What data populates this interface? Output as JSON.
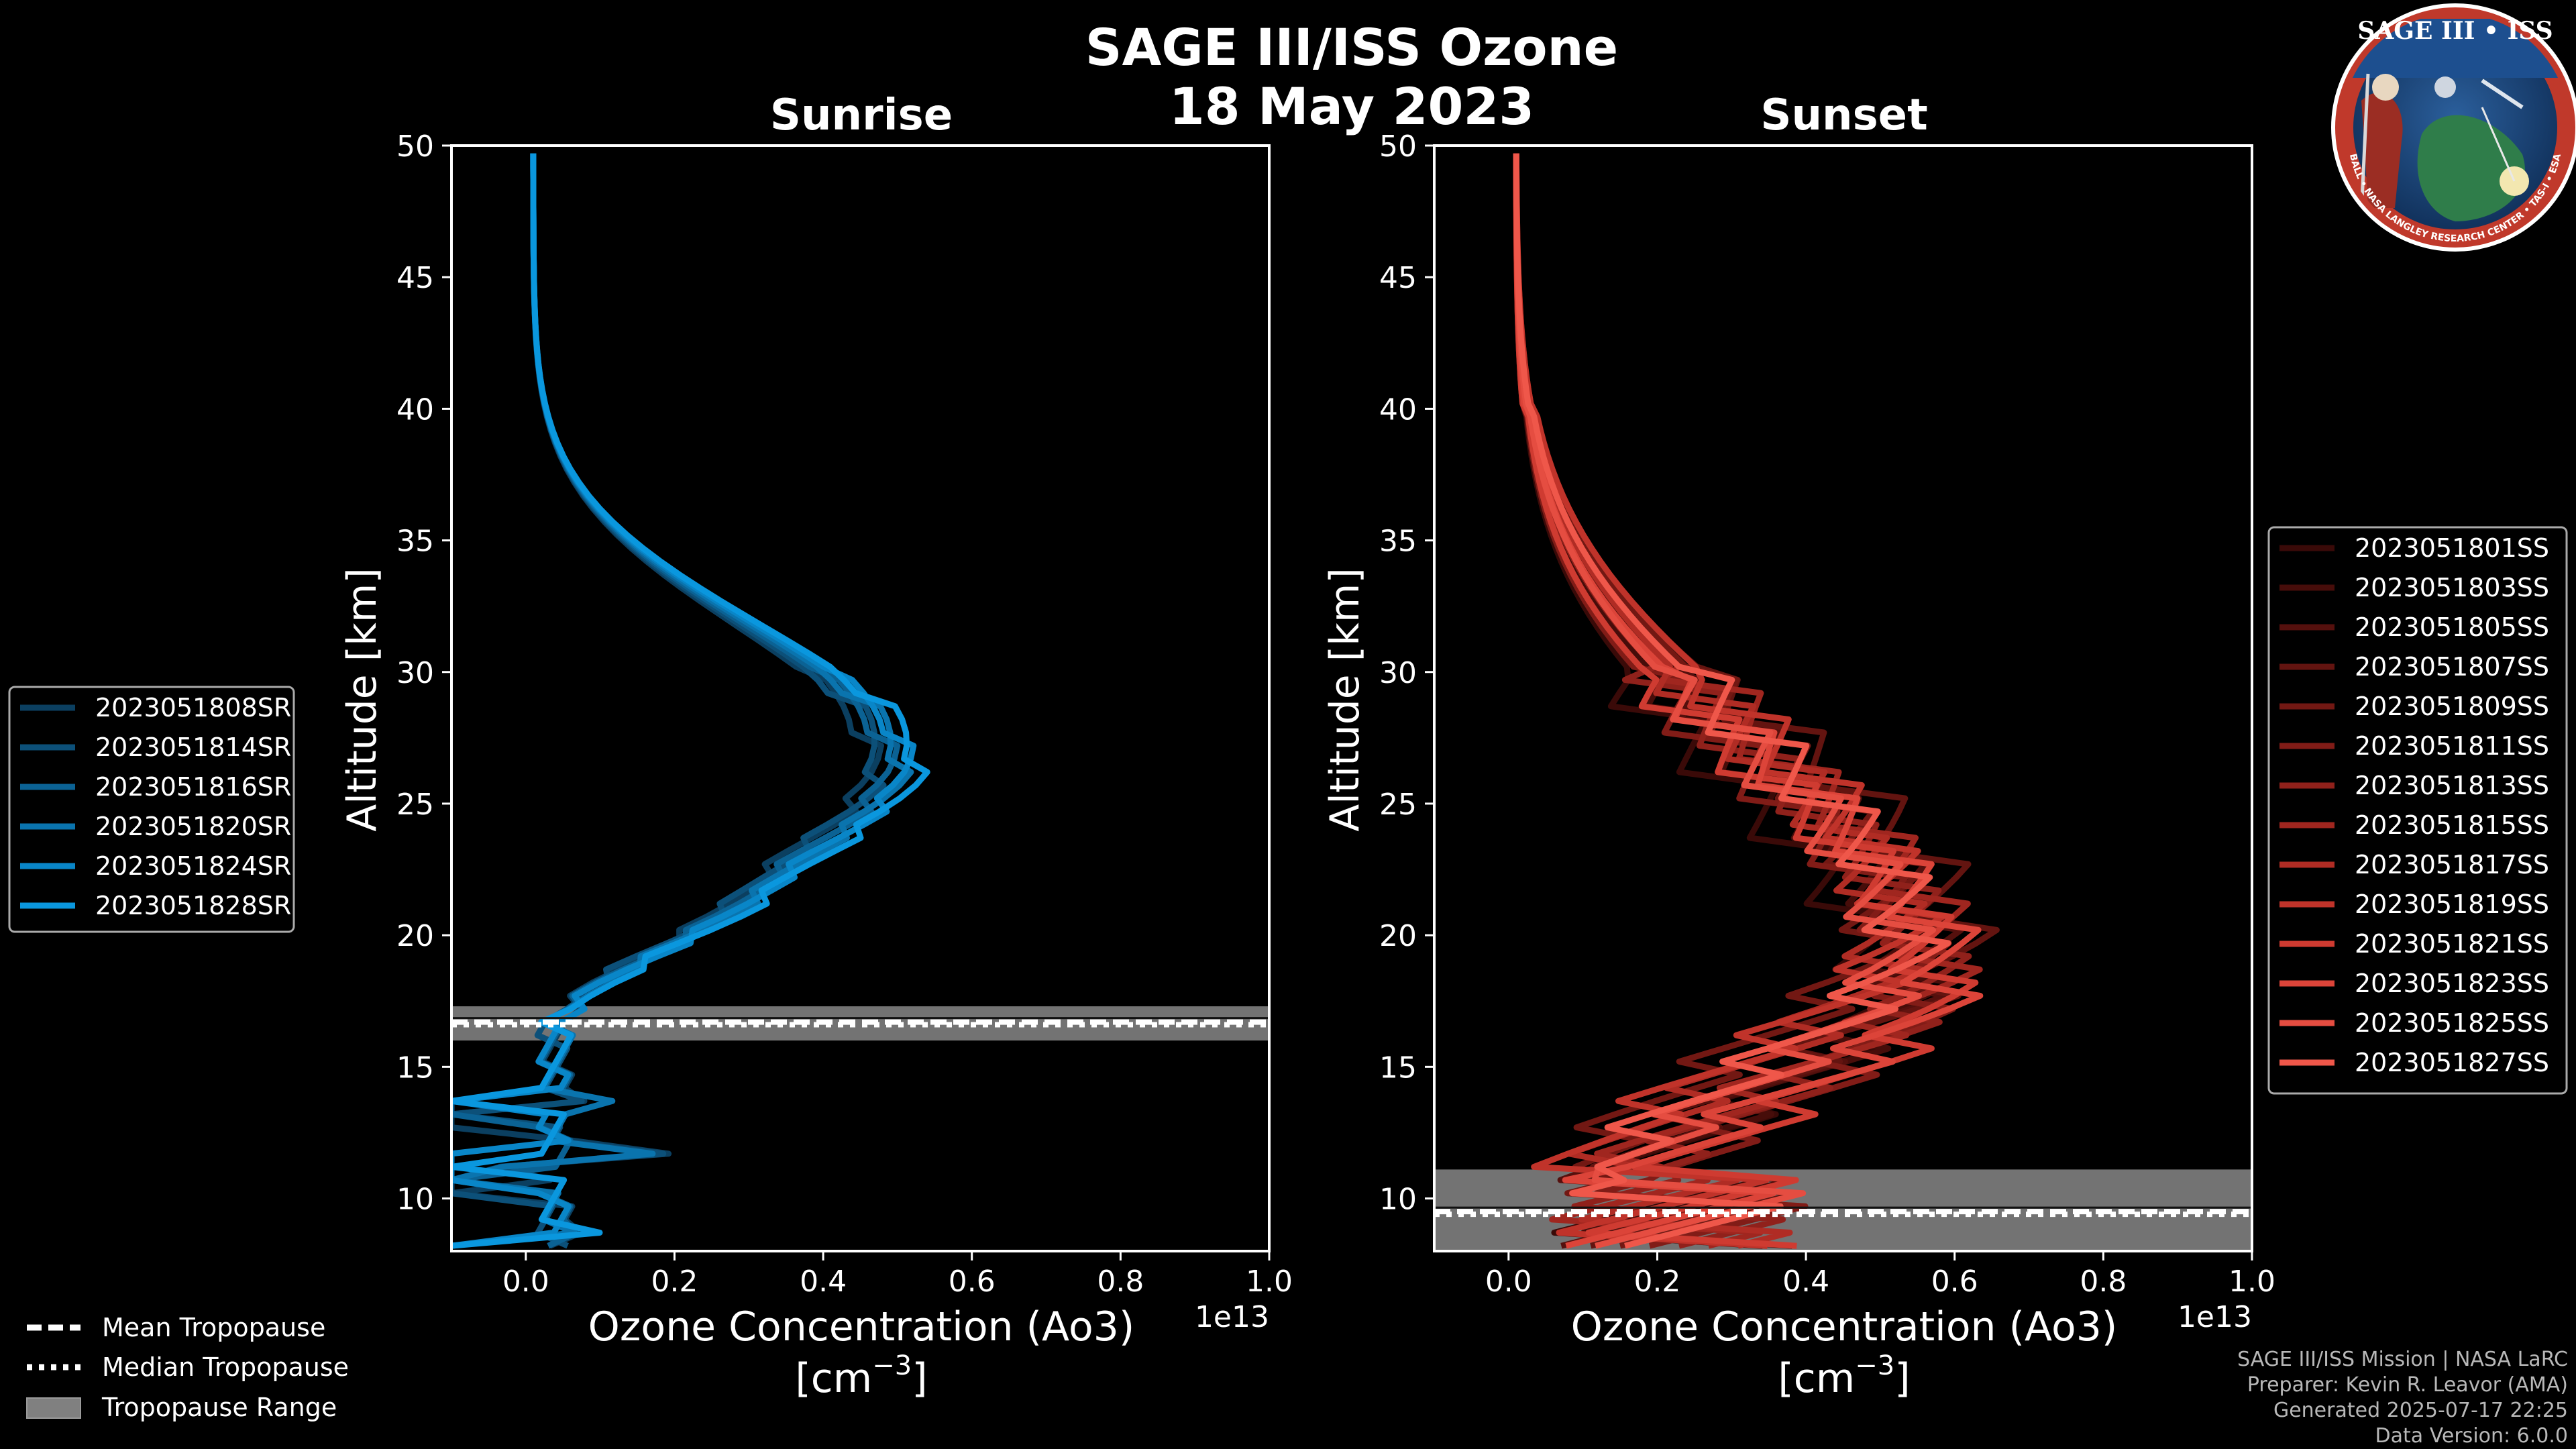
{
  "header": {
    "title_line1": "SAGE III/ISS Ozone",
    "title_line2": "18 May 2023"
  },
  "logo": {
    "top_text": "SAGE III • ISS",
    "ring_text": "BALL • NASA LANGLEY RESEARCH CENTER • TAS-I • ESA"
  },
  "chart_data": [
    {
      "type": "line",
      "title": "Sunrise",
      "xlabel_line1": "Ozone Concentration (Ao3)",
      "xlabel_line2": "[cm",
      "xlabel_exp": "−3",
      "xlabel_line2_end": "]",
      "ylabel": "Altitude [km]",
      "offset_text": "1e13",
      "xlim": [
        -0.1,
        1.0
      ],
      "ylim": [
        8,
        50
      ],
      "xticks": [
        0.0,
        0.2,
        0.4,
        0.6,
        0.8,
        1.0
      ],
      "xtick_labels": [
        "0.0",
        "0.2",
        "0.4",
        "0.6",
        "0.8",
        "1.0"
      ],
      "yticks": [
        10,
        15,
        20,
        25,
        30,
        35,
        40,
        45,
        50
      ],
      "ytick_labels": [
        "10",
        "15",
        "20",
        "25",
        "30",
        "35",
        "40",
        "45",
        "50"
      ],
      "tropopause": {
        "mean": 16.7,
        "median": 16.6,
        "range": [
          16.0,
          17.3
        ]
      },
      "series": [
        {
          "name": "2023051808SR",
          "color": "#0b3f60"
        },
        {
          "name": "2023051814SR",
          "color": "#0c5079"
        },
        {
          "name": "2023051816SR",
          "color": "#0b6294"
        },
        {
          "name": "2023051820SR",
          "color": "#0a74ae"
        },
        {
          "name": "2023051824SR",
          "color": "#0986c8"
        },
        {
          "name": "2023051828SR",
          "color": "#0a97de"
        }
      ]
    },
    {
      "type": "line",
      "title": "Sunset",
      "xlabel_line1": "Ozone Concentration (Ao3)",
      "xlabel_line2": "[cm",
      "xlabel_exp": "−3",
      "xlabel_line2_end": "]",
      "ylabel": "Altitude [km]",
      "offset_text": "1e13",
      "xlim": [
        -0.1,
        1.0
      ],
      "ylim": [
        8,
        50
      ],
      "xticks": [
        0.0,
        0.2,
        0.4,
        0.6,
        0.8,
        1.0
      ],
      "xtick_labels": [
        "0.0",
        "0.2",
        "0.4",
        "0.6",
        "0.8",
        "1.0"
      ],
      "yticks": [
        10,
        15,
        20,
        25,
        30,
        35,
        40,
        45,
        50
      ],
      "ytick_labels": [
        "10",
        "15",
        "20",
        "25",
        "30",
        "35",
        "40",
        "45",
        "50"
      ],
      "tropopause": {
        "mean": 9.5,
        "median": 9.4,
        "range": [
          8.0,
          11.1
        ]
      },
      "series": [
        {
          "name": "2023051801SS",
          "color": "#3a0a08"
        },
        {
          "name": "2023051803SS",
          "color": "#470d0a"
        },
        {
          "name": "2023051805SS",
          "color": "#55100d"
        },
        {
          "name": "2023051807SS",
          "color": "#631410"
        },
        {
          "name": "2023051809SS",
          "color": "#721813"
        },
        {
          "name": "2023051811SS",
          "color": "#811c17"
        },
        {
          "name": "2023051813SS",
          "color": "#90211b"
        },
        {
          "name": "2023051815SS",
          "color": "#a0261f"
        },
        {
          "name": "2023051817SS",
          "color": "#b02c24"
        },
        {
          "name": "2023051819SS",
          "color": "#c0332a"
        },
        {
          "name": "2023051821SS",
          "color": "#cf3b31"
        },
        {
          "name": "2023051823SS",
          "color": "#dc4439"
        },
        {
          "name": "2023051825SS",
          "color": "#e54d41"
        },
        {
          "name": "2023051827SS",
          "color": "#ef574a"
        }
      ]
    }
  ],
  "tropopause_legend": {
    "mean": "Mean Tropopause",
    "median": "Median Tropopause",
    "range": "Tropopause Range"
  },
  "footer": {
    "line1": "SAGE III/ISS Mission | NASA LaRC",
    "line2": "Preparer: Kevin R. Leavor (AMA)",
    "line3": "Generated 2025-07-17 22:25",
    "line4": "Data Version: 6.0.0"
  }
}
